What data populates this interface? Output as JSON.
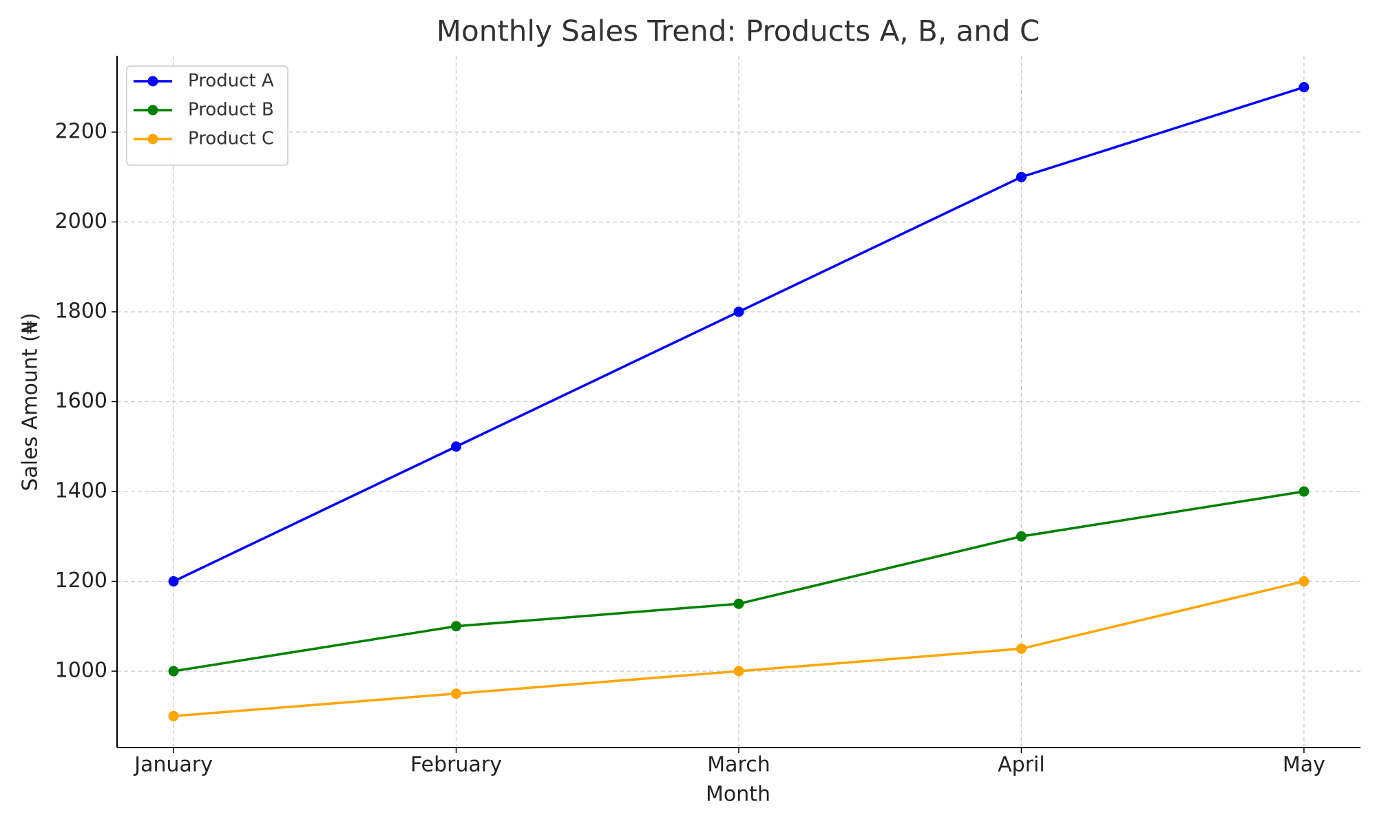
{
  "chart_data": {
    "type": "line",
    "title": "Monthly Sales Trend: Products A, B, and C",
    "x_label": "Month",
    "y_label": "Sales Amount (₦)",
    "categories": [
      "January",
      "February",
      "March",
      "April",
      "May"
    ],
    "series": [
      {
        "name": "Product A",
        "color": "#0000ff",
        "values": [
          1200,
          1500,
          1800,
          2100,
          2300
        ]
      },
      {
        "name": "Product B",
        "color": "#008000",
        "values": [
          1000,
          1100,
          1150,
          1300,
          1400
        ]
      },
      {
        "name": "Product C",
        "color": "#ffa500",
        "values": [
          900,
          950,
          1000,
          1050,
          1200
        ]
      }
    ],
    "ylim": [
      830,
      2370
    ],
    "yticks": [
      1000,
      1200,
      1400,
      1600,
      1800,
      2000,
      2200
    ],
    "grid": true,
    "legend": "upper left"
  }
}
